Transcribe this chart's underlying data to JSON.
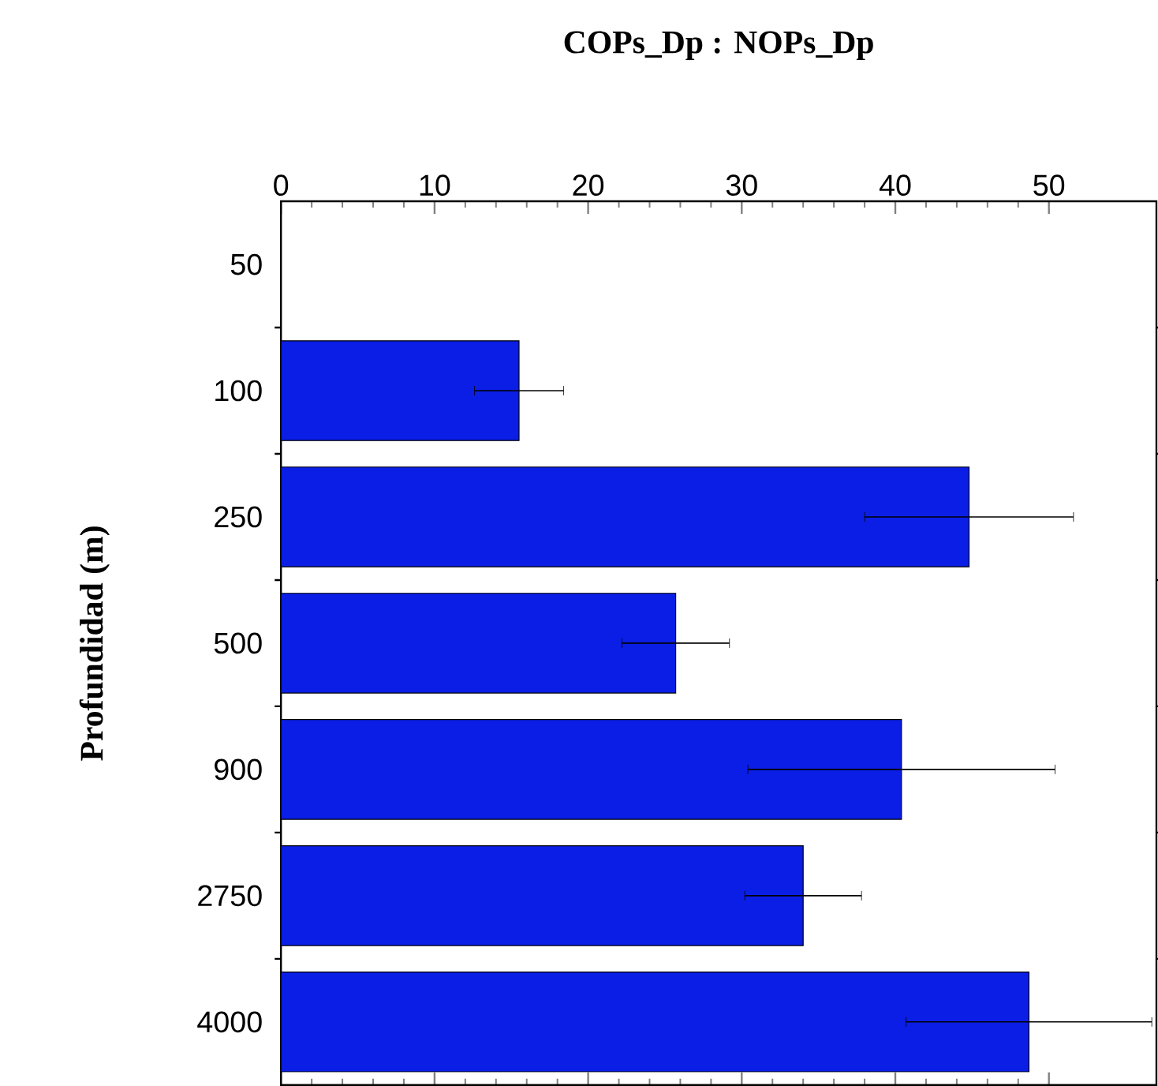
{
  "chart_data": {
    "type": "bar",
    "orientation": "horizontal",
    "title": "COPs_Dp : NOPs_Dp",
    "ylabel": "Profundidad (m)",
    "categories": [
      "50",
      "100",
      "250",
      "500",
      "900",
      "2750",
      "4000"
    ],
    "values": [
      null,
      15.5,
      44.8,
      25.7,
      40.4,
      34.0,
      48.7
    ],
    "errors": [
      null,
      2.9,
      6.8,
      3.5,
      10,
      3.8,
      8
    ],
    "color": "#0a1ee6",
    "xlim": [
      0,
      57
    ],
    "xticks": [
      0,
      10,
      20,
      30,
      40,
      50
    ],
    "grid": false
  }
}
